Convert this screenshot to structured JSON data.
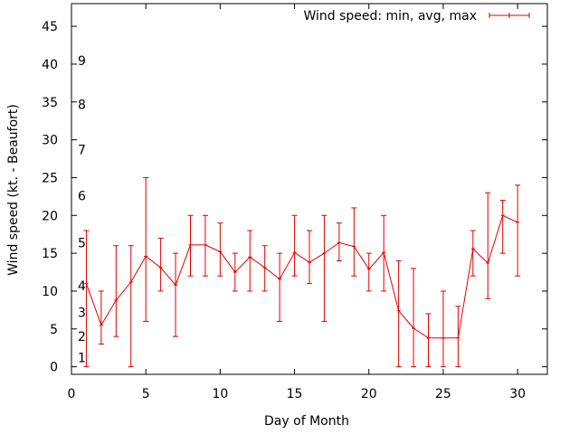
{
  "chart_data": {
    "type": "line",
    "title": "",
    "xlabel": "Day of Month",
    "ylabel": "Wind speed (kt. - Beaufort)",
    "xlim": [
      0,
      32
    ],
    "ylim": [
      -1,
      48
    ],
    "xticks": [
      0,
      5,
      10,
      15,
      20,
      25,
      30
    ],
    "yticks": [
      0,
      5,
      10,
      15,
      20,
      25,
      30,
      35,
      40,
      45
    ],
    "grid": false,
    "legend_position": "top-right",
    "series": [
      {
        "name": "Wind speed: min, avg, max",
        "color": "#dd0000",
        "x": [
          1,
          2,
          3,
          4,
          5,
          6,
          7,
          8,
          9,
          10,
          11,
          12,
          13,
          14,
          15,
          16,
          17,
          18,
          19,
          20,
          21,
          22,
          23,
          24,
          25,
          26,
          27,
          28,
          29,
          30
        ],
        "avg": [
          11,
          5.5,
          8.8,
          11.2,
          14.6,
          13.1,
          10.8,
          16.1,
          16.1,
          15.2,
          12.5,
          14.5,
          13.1,
          11.6,
          15.1,
          13.8,
          15,
          16.4,
          15.9,
          12.9,
          15.1,
          7.4,
          5.1,
          3.8,
          3.8,
          3.8,
          15.6,
          13.7,
          20,
          19.1
        ],
        "min": [
          0,
          3,
          4,
          0,
          6,
          10,
          4,
          12,
          12,
          12,
          10,
          10,
          10,
          6,
          12,
          11,
          6,
          14,
          12,
          10,
          10,
          0,
          0,
          0,
          0,
          0,
          12,
          9,
          15,
          12
        ],
        "max": [
          18,
          10,
          16,
          16,
          25,
          17,
          15,
          20,
          20,
          19,
          15,
          18,
          16,
          15,
          20,
          18,
          20,
          19,
          21,
          15,
          20,
          14,
          13,
          7,
          10,
          8,
          18,
          23,
          22,
          24
        ]
      }
    ],
    "annotations": [
      {
        "text": "1",
        "x": 0.7,
        "y": 1.2
      },
      {
        "text": "2",
        "x": 0.7,
        "y": 4
      },
      {
        "text": "3",
        "x": 0.7,
        "y": 7.2
      },
      {
        "text": "4",
        "x": 0.7,
        "y": 10.7
      },
      {
        "text": "5",
        "x": 0.7,
        "y": 16.4
      },
      {
        "text": "6",
        "x": 0.7,
        "y": 22.6
      },
      {
        "text": "7",
        "x": 0.7,
        "y": 28.7
      },
      {
        "text": "8",
        "x": 0.7,
        "y": 34.7
      },
      {
        "text": "9",
        "x": 0.7,
        "y": 40.5
      }
    ]
  }
}
